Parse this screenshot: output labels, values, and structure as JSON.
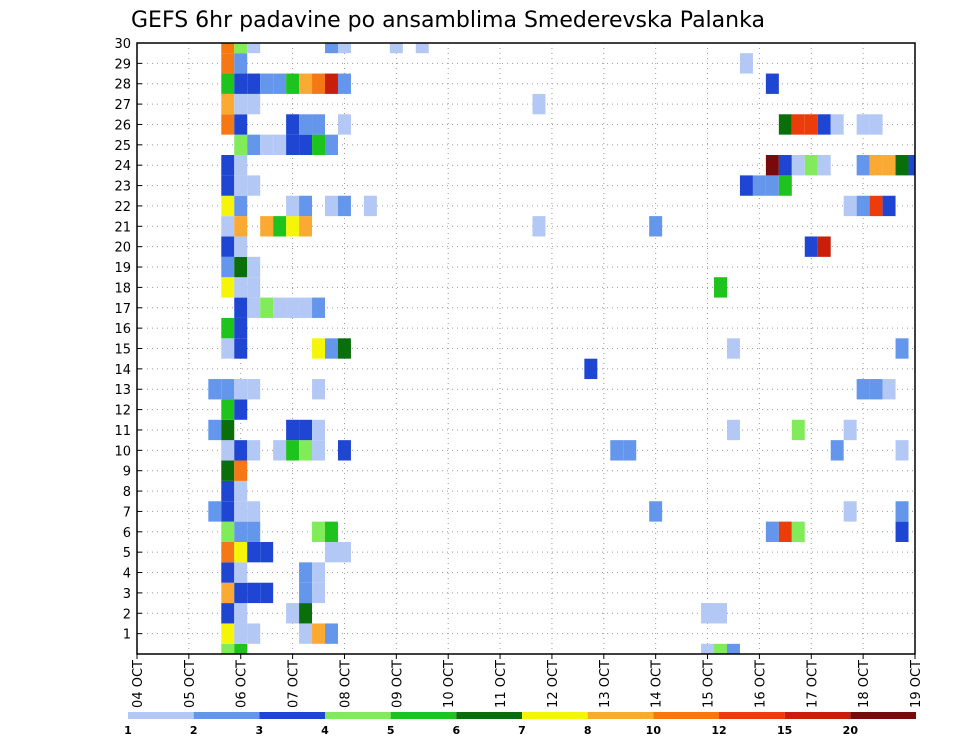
{
  "chart_data": {
    "type": "heatmap",
    "title": "GEFS 6hr padavine po ansamblima Smederevska Palanka",
    "xlabel": "",
    "ylabel": "",
    "x_tick_labels": [
      "04 OCT",
      "05 OCT",
      "06 OCT",
      "07 OCT",
      "08 OCT",
      "09 OCT",
      "10 OCT",
      "11 OCT",
      "12 OCT",
      "13 OCT",
      "14 OCT",
      "15 OCT",
      "16 OCT",
      "17 OCT",
      "18 OCT",
      "19 OCT"
    ],
    "y_tick_labels": [
      "1",
      "2",
      "3",
      "4",
      "5",
      "6",
      "7",
      "8",
      "9",
      "10",
      "11",
      "12",
      "13",
      "14",
      "15",
      "16",
      "17",
      "18",
      "19",
      "20",
      "21",
      "22",
      "23",
      "24",
      "25",
      "26",
      "27",
      "28",
      "29",
      "30"
    ],
    "xlim_steps": [
      0,
      60
    ],
    "ylim_members": [
      0,
      30
    ],
    "grid": true,
    "legend": {
      "placement": "bottom",
      "bins": [
        {
          "label": "1",
          "color": "#b4c8f5"
        },
        {
          "label": "2",
          "color": "#6496eb"
        },
        {
          "label": "3",
          "color": "#1e46d2"
        },
        {
          "label": "4",
          "color": "#82eb5a"
        },
        {
          "label": "5",
          "color": "#1ec31e"
        },
        {
          "label": "6",
          "color": "#0a6e0a"
        },
        {
          "label": "7",
          "color": "#f5f50a"
        },
        {
          "label": "8",
          "color": "#faaa32"
        },
        {
          "label": "10",
          "color": "#f57814"
        },
        {
          "label": "12",
          "color": "#eb3c0a"
        },
        {
          "label": "15",
          "color": "#c81e0a"
        },
        {
          "label": "20",
          "color": "#780a0a"
        }
      ]
    },
    "cells": [
      {
        "step": 7,
        "member": 0,
        "bin": 4
      },
      {
        "step": 8,
        "member": 0,
        "bin": 5
      },
      {
        "step": 44,
        "member": 0,
        "bin": 1
      },
      {
        "step": 45,
        "member": 0,
        "bin": 4
      },
      {
        "step": 46,
        "member": 0,
        "bin": 2
      },
      {
        "step": 7,
        "member": 1,
        "bin": 7
      },
      {
        "step": 8,
        "member": 1,
        "bin": 1
      },
      {
        "step": 9,
        "member": 1,
        "bin": 1
      },
      {
        "step": 13,
        "member": 1,
        "bin": 1
      },
      {
        "step": 14,
        "member": 1,
        "bin": 8
      },
      {
        "step": 15,
        "member": 1,
        "bin": 2
      },
      {
        "step": 7,
        "member": 2,
        "bin": 3
      },
      {
        "step": 8,
        "member": 2,
        "bin": 1
      },
      {
        "step": 12,
        "member": 2,
        "bin": 1
      },
      {
        "step": 13,
        "member": 2,
        "bin": 6
      },
      {
        "step": 44,
        "member": 2,
        "bin": 1
      },
      {
        "step": 45,
        "member": 2,
        "bin": 1
      },
      {
        "step": 7,
        "member": 3,
        "bin": 8
      },
      {
        "step": 8,
        "member": 3,
        "bin": 3
      },
      {
        "step": 9,
        "member": 3,
        "bin": 3
      },
      {
        "step": 10,
        "member": 3,
        "bin": 3
      },
      {
        "step": 13,
        "member": 3,
        "bin": 2
      },
      {
        "step": 14,
        "member": 3,
        "bin": 1
      },
      {
        "step": 7,
        "member": 4,
        "bin": 3
      },
      {
        "step": 8,
        "member": 4,
        "bin": 1
      },
      {
        "step": 13,
        "member": 4,
        "bin": 2
      },
      {
        "step": 14,
        "member": 4,
        "bin": 1
      },
      {
        "step": 7,
        "member": 5,
        "bin": 9
      },
      {
        "step": 8,
        "member": 5,
        "bin": 7
      },
      {
        "step": 9,
        "member": 5,
        "bin": 3
      },
      {
        "step": 10,
        "member": 5,
        "bin": 3
      },
      {
        "step": 15,
        "member": 5,
        "bin": 1
      },
      {
        "step": 16,
        "member": 5,
        "bin": 1
      },
      {
        "step": 7,
        "member": 6,
        "bin": 4
      },
      {
        "step": 8,
        "member": 6,
        "bin": 2
      },
      {
        "step": 9,
        "member": 6,
        "bin": 2
      },
      {
        "step": 14,
        "member": 6,
        "bin": 4
      },
      {
        "step": 15,
        "member": 6,
        "bin": 5
      },
      {
        "step": 49,
        "member": 6,
        "bin": 2
      },
      {
        "step": 50,
        "member": 6,
        "bin": 10
      },
      {
        "step": 51,
        "member": 6,
        "bin": 4
      },
      {
        "step": 59,
        "member": 6,
        "bin": 3
      },
      {
        "step": 6,
        "member": 7,
        "bin": 2
      },
      {
        "step": 7,
        "member": 7,
        "bin": 3
      },
      {
        "step": 8,
        "member": 7,
        "bin": 1
      },
      {
        "step": 9,
        "member": 7,
        "bin": 1
      },
      {
        "step": 40,
        "member": 7,
        "bin": 2
      },
      {
        "step": 55,
        "member": 7,
        "bin": 1
      },
      {
        "step": 59,
        "member": 7,
        "bin": 2
      },
      {
        "step": 7,
        "member": 8,
        "bin": 3
      },
      {
        "step": 8,
        "member": 8,
        "bin": 1
      },
      {
        "step": 7,
        "member": 9,
        "bin": 6
      },
      {
        "step": 8,
        "member": 9,
        "bin": 9
      },
      {
        "step": 7,
        "member": 10,
        "bin": 1
      },
      {
        "step": 8,
        "member": 10,
        "bin": 3
      },
      {
        "step": 9,
        "member": 10,
        "bin": 1
      },
      {
        "step": 11,
        "member": 10,
        "bin": 1
      },
      {
        "step": 12,
        "member": 10,
        "bin": 5
      },
      {
        "step": 13,
        "member": 10,
        "bin": 4
      },
      {
        "step": 14,
        "member": 10,
        "bin": 1
      },
      {
        "step": 16,
        "member": 10,
        "bin": 3
      },
      {
        "step": 37,
        "member": 10,
        "bin": 2
      },
      {
        "step": 38,
        "member": 10,
        "bin": 2
      },
      {
        "step": 54,
        "member": 10,
        "bin": 2
      },
      {
        "step": 59,
        "member": 10,
        "bin": 1
      },
      {
        "step": 6,
        "member": 11,
        "bin": 2
      },
      {
        "step": 7,
        "member": 11,
        "bin": 6
      },
      {
        "step": 12,
        "member": 11,
        "bin": 3
      },
      {
        "step": 13,
        "member": 11,
        "bin": 3
      },
      {
        "step": 14,
        "member": 11,
        "bin": 1
      },
      {
        "step": 46,
        "member": 11,
        "bin": 1
      },
      {
        "step": 51,
        "member": 11,
        "bin": 4
      },
      {
        "step": 55,
        "member": 11,
        "bin": 1
      },
      {
        "step": 7,
        "member": 12,
        "bin": 5
      },
      {
        "step": 8,
        "member": 12,
        "bin": 3
      },
      {
        "step": 6,
        "member": 13,
        "bin": 2
      },
      {
        "step": 7,
        "member": 13,
        "bin": 2
      },
      {
        "step": 8,
        "member": 13,
        "bin": 1
      },
      {
        "step": 9,
        "member": 13,
        "bin": 1
      },
      {
        "step": 14,
        "member": 13,
        "bin": 1
      },
      {
        "step": 56,
        "member": 13,
        "bin": 2
      },
      {
        "step": 57,
        "member": 13,
        "bin": 2
      },
      {
        "step": 58,
        "member": 13,
        "bin": 1
      },
      {
        "step": 35,
        "member": 14,
        "bin": 3
      },
      {
        "step": 7,
        "member": 15,
        "bin": 1
      },
      {
        "step": 8,
        "member": 15,
        "bin": 3
      },
      {
        "step": 14,
        "member": 15,
        "bin": 7
      },
      {
        "step": 15,
        "member": 15,
        "bin": 2
      },
      {
        "step": 16,
        "member": 15,
        "bin": 6
      },
      {
        "step": 46,
        "member": 15,
        "bin": 1
      },
      {
        "step": 59,
        "member": 15,
        "bin": 2
      },
      {
        "step": 7,
        "member": 16,
        "bin": 5
      },
      {
        "step": 8,
        "member": 16,
        "bin": 3
      },
      {
        "step": 8,
        "member": 17,
        "bin": 3
      },
      {
        "step": 9,
        "member": 17,
        "bin": 1
      },
      {
        "step": 10,
        "member": 17,
        "bin": 4
      },
      {
        "step": 11,
        "member": 17,
        "bin": 1
      },
      {
        "step": 12,
        "member": 17,
        "bin": 1
      },
      {
        "step": 13,
        "member": 17,
        "bin": 1
      },
      {
        "step": 14,
        "member": 17,
        "bin": 2
      },
      {
        "step": 7,
        "member": 18,
        "bin": 7
      },
      {
        "step": 8,
        "member": 18,
        "bin": 1
      },
      {
        "step": 9,
        "member": 18,
        "bin": 1
      },
      {
        "step": 45,
        "member": 18,
        "bin": 5
      },
      {
        "step": 7,
        "member": 19,
        "bin": 2
      },
      {
        "step": 8,
        "member": 19,
        "bin": 6
      },
      {
        "step": 9,
        "member": 19,
        "bin": 1
      },
      {
        "step": 7,
        "member": 20,
        "bin": 3
      },
      {
        "step": 8,
        "member": 20,
        "bin": 1
      },
      {
        "step": 52,
        "member": 20,
        "bin": 3
      },
      {
        "step": 53,
        "member": 20,
        "bin": 11
      },
      {
        "step": 7,
        "member": 21,
        "bin": 1
      },
      {
        "step": 8,
        "member": 21,
        "bin": 8
      },
      {
        "step": 10,
        "member": 21,
        "bin": 8
      },
      {
        "step": 11,
        "member": 21,
        "bin": 5
      },
      {
        "step": 12,
        "member": 21,
        "bin": 7
      },
      {
        "step": 13,
        "member": 21,
        "bin": 8
      },
      {
        "step": 31,
        "member": 21,
        "bin": 1
      },
      {
        "step": 40,
        "member": 21,
        "bin": 2
      },
      {
        "step": 7,
        "member": 22,
        "bin": 7
      },
      {
        "step": 8,
        "member": 22,
        "bin": 2
      },
      {
        "step": 12,
        "member": 22,
        "bin": 1
      },
      {
        "step": 13,
        "member": 22,
        "bin": 2
      },
      {
        "step": 15,
        "member": 22,
        "bin": 1
      },
      {
        "step": 16,
        "member": 22,
        "bin": 2
      },
      {
        "step": 18,
        "member": 22,
        "bin": 1
      },
      {
        "step": 55,
        "member": 22,
        "bin": 1
      },
      {
        "step": 56,
        "member": 22,
        "bin": 2
      },
      {
        "step": 57,
        "member": 22,
        "bin": 10
      },
      {
        "step": 58,
        "member": 22,
        "bin": 3
      },
      {
        "step": 7,
        "member": 23,
        "bin": 3
      },
      {
        "step": 8,
        "member": 23,
        "bin": 1
      },
      {
        "step": 9,
        "member": 23,
        "bin": 1
      },
      {
        "step": 47,
        "member": 23,
        "bin": 3
      },
      {
        "step": 48,
        "member": 23,
        "bin": 2
      },
      {
        "step": 49,
        "member": 23,
        "bin": 2
      },
      {
        "step": 50,
        "member": 23,
        "bin": 5
      },
      {
        "step": 7,
        "member": 24,
        "bin": 3
      },
      {
        "step": 8,
        "member": 24,
        "bin": 1
      },
      {
        "step": 49,
        "member": 24,
        "bin": 12
      },
      {
        "step": 50,
        "member": 24,
        "bin": 3
      },
      {
        "step": 51,
        "member": 24,
        "bin": 1
      },
      {
        "step": 52,
        "member": 24,
        "bin": 4
      },
      {
        "step": 53,
        "member": 24,
        "bin": 1
      },
      {
        "step": 56,
        "member": 24,
        "bin": 2
      },
      {
        "step": 57,
        "member": 24,
        "bin": 8
      },
      {
        "step": 58,
        "member": 24,
        "bin": 8
      },
      {
        "step": 59,
        "member": 24,
        "bin": 6
      },
      {
        "step": 60,
        "member": 24,
        "bin": 3
      },
      {
        "step": 8,
        "member": 25,
        "bin": 4
      },
      {
        "step": 9,
        "member": 25,
        "bin": 2
      },
      {
        "step": 10,
        "member": 25,
        "bin": 1
      },
      {
        "step": 11,
        "member": 25,
        "bin": 1
      },
      {
        "step": 12,
        "member": 25,
        "bin": 3
      },
      {
        "step": 13,
        "member": 25,
        "bin": 3
      },
      {
        "step": 14,
        "member": 25,
        "bin": 5
      },
      {
        "step": 15,
        "member": 25,
        "bin": 2
      },
      {
        "step": 7,
        "member": 26,
        "bin": 9
      },
      {
        "step": 8,
        "member": 26,
        "bin": 3
      },
      {
        "step": 12,
        "member": 26,
        "bin": 3
      },
      {
        "step": 13,
        "member": 26,
        "bin": 2
      },
      {
        "step": 14,
        "member": 26,
        "bin": 2
      },
      {
        "step": 16,
        "member": 26,
        "bin": 1
      },
      {
        "step": 50,
        "member": 26,
        "bin": 6
      },
      {
        "step": 51,
        "member": 26,
        "bin": 10
      },
      {
        "step": 52,
        "member": 26,
        "bin": 10
      },
      {
        "step": 53,
        "member": 26,
        "bin": 3
      },
      {
        "step": 54,
        "member": 26,
        "bin": 1
      },
      {
        "step": 56,
        "member": 26,
        "bin": 1
      },
      {
        "step": 57,
        "member": 26,
        "bin": 1
      },
      {
        "step": 7,
        "member": 27,
        "bin": 8
      },
      {
        "step": 8,
        "member": 27,
        "bin": 1
      },
      {
        "step": 9,
        "member": 27,
        "bin": 1
      },
      {
        "step": 31,
        "member": 27,
        "bin": 1
      },
      {
        "step": 7,
        "member": 28,
        "bin": 5
      },
      {
        "step": 8,
        "member": 28,
        "bin": 3
      },
      {
        "step": 9,
        "member": 28,
        "bin": 3
      },
      {
        "step": 10,
        "member": 28,
        "bin": 2
      },
      {
        "step": 11,
        "member": 28,
        "bin": 2
      },
      {
        "step": 12,
        "member": 28,
        "bin": 5
      },
      {
        "step": 13,
        "member": 28,
        "bin": 8
      },
      {
        "step": 14,
        "member": 28,
        "bin": 9
      },
      {
        "step": 15,
        "member": 28,
        "bin": 11
      },
      {
        "step": 16,
        "member": 28,
        "bin": 2
      },
      {
        "step": 49,
        "member": 28,
        "bin": 3
      },
      {
        "step": 7,
        "member": 29,
        "bin": 9
      },
      {
        "step": 8,
        "member": 29,
        "bin": 2
      },
      {
        "step": 47,
        "member": 29,
        "bin": 1
      },
      {
        "step": 7,
        "member": 30,
        "bin": 9
      },
      {
        "step": 8,
        "member": 30,
        "bin": 4
      },
      {
        "step": 9,
        "member": 30,
        "bin": 1
      },
      {
        "step": 15,
        "member": 30,
        "bin": 2
      },
      {
        "step": 16,
        "member": 30,
        "bin": 1
      },
      {
        "step": 20,
        "member": 30,
        "bin": 1
      },
      {
        "step": 22,
        "member": 30,
        "bin": 1
      }
    ]
  }
}
